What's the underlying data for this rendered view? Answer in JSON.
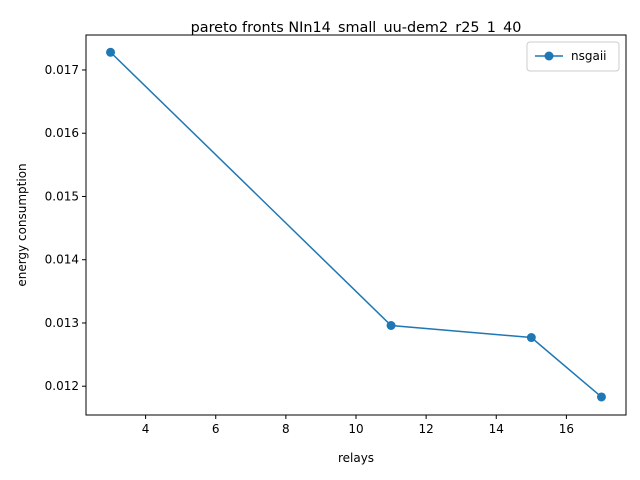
{
  "chart_data": {
    "type": "line",
    "title": "pareto fronts NIn14_small_uu-dem2_r25_1_40",
    "xlabel": "relays",
    "ylabel": "energy consumption",
    "xlim": [
      2.3,
      17.7
    ],
    "ylim": [
      0.011545,
      0.017553
    ],
    "xticks": [
      4,
      6,
      8,
      10,
      12,
      14,
      16
    ],
    "xtick_labels": [
      "4",
      "6",
      "8",
      "10",
      "12",
      "14",
      "16"
    ],
    "yticks": [
      0.012,
      0.013,
      0.014,
      0.015,
      0.016,
      0.017
    ],
    "ytick_labels": [
      "0.012",
      "0.013",
      "0.014",
      "0.015",
      "0.016",
      "0.017"
    ],
    "grid": false,
    "legend_position": "top-right",
    "series": [
      {
        "name": "nsgaii",
        "color": "#1f77b4",
        "marker": "circle",
        "x": [
          3,
          11,
          15,
          17
        ],
        "y": [
          0.01728,
          0.01296,
          0.01277,
          0.01183
        ]
      }
    ]
  }
}
